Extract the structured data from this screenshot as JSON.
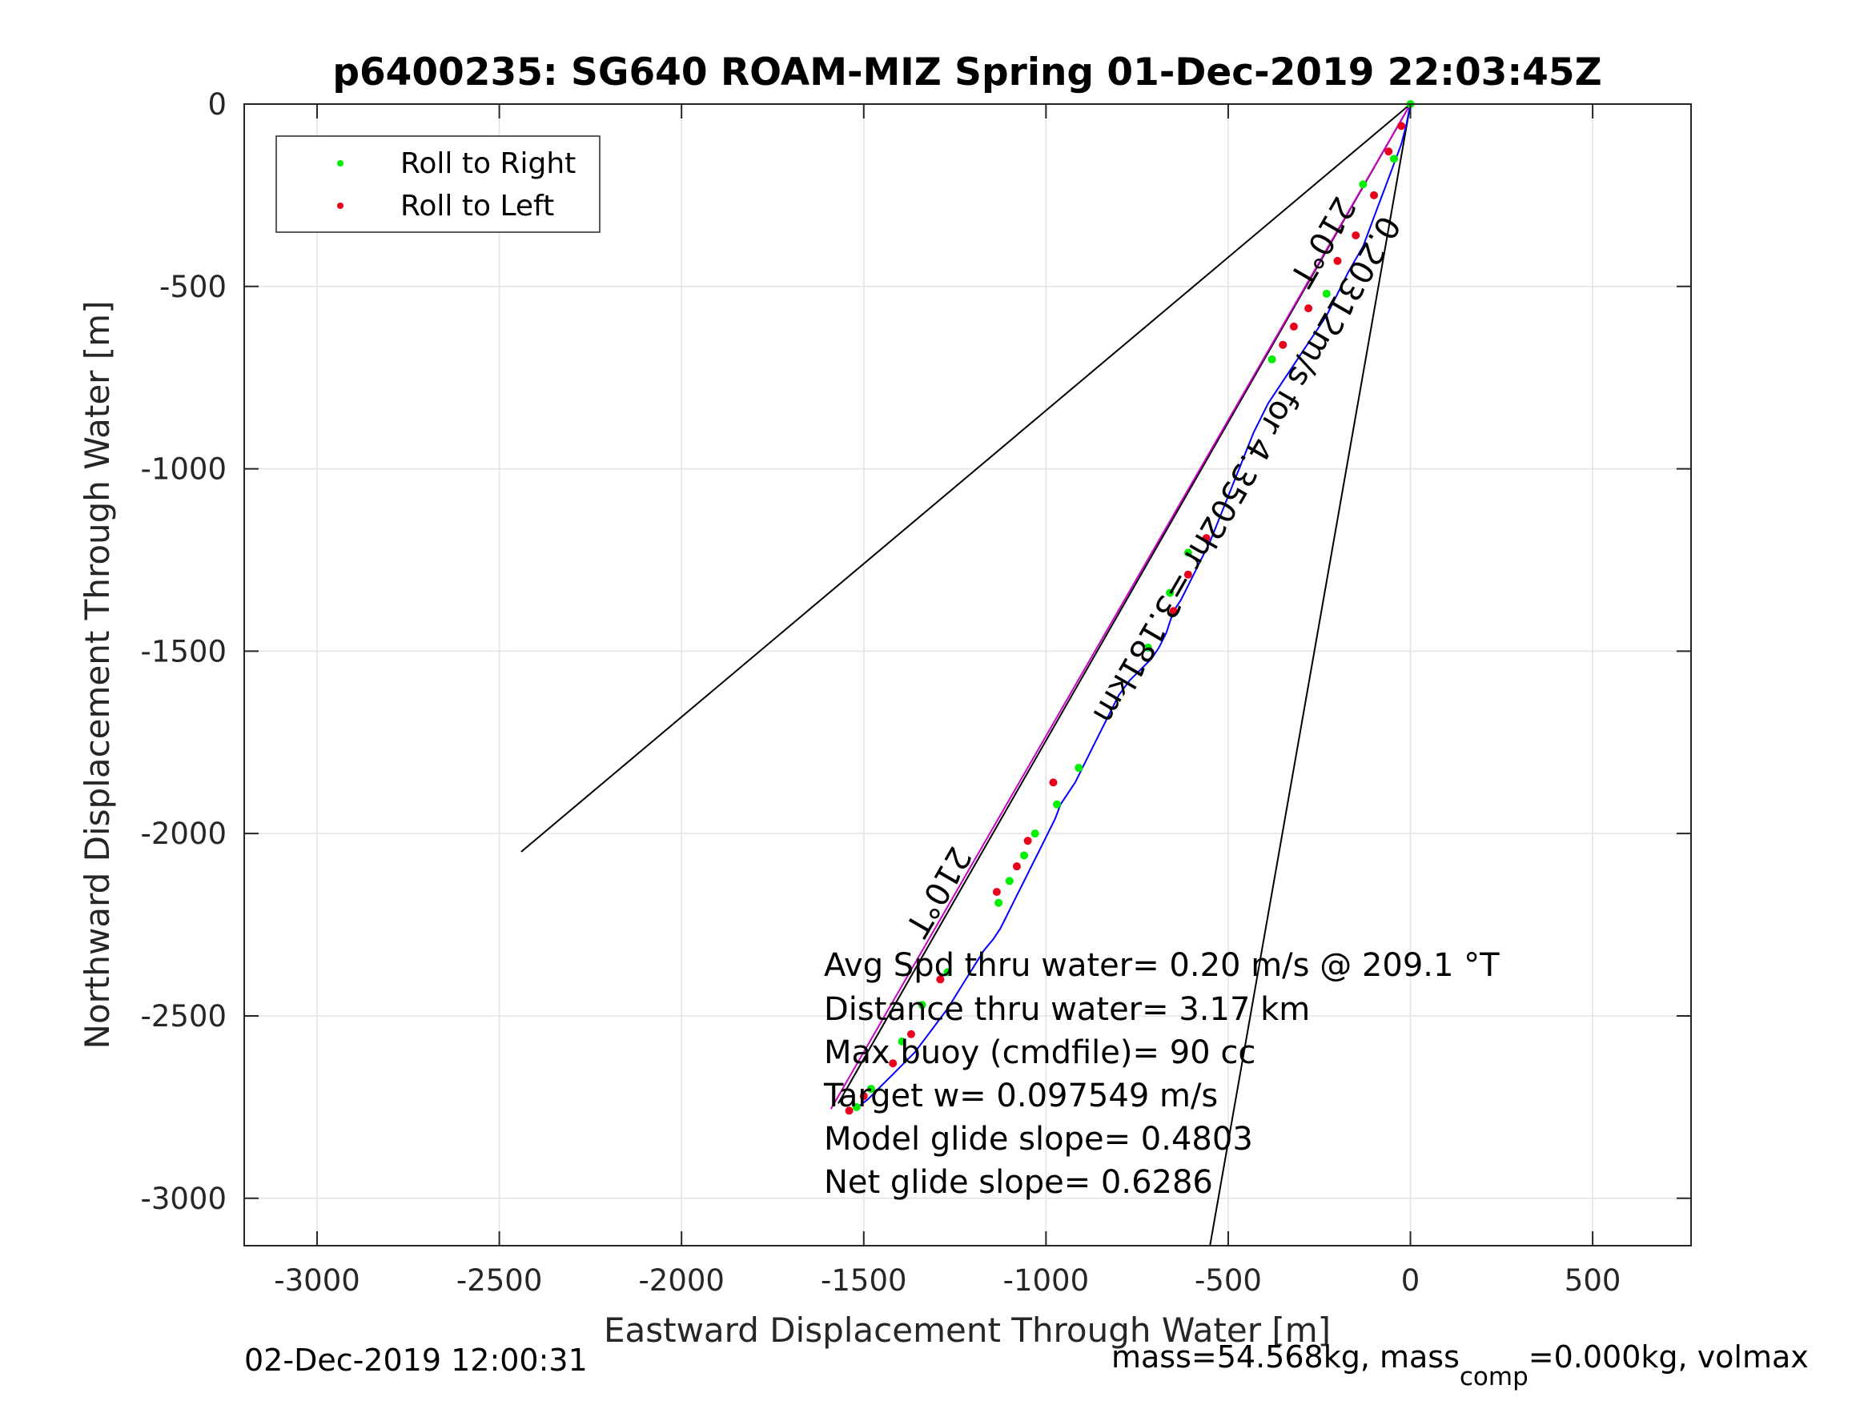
{
  "chart_data": {
    "type": "scatter",
    "title": "p6400235: SG640 ROAM-MIZ Spring 01-Dec-2019 22:03:45Z",
    "xlabel": "Eastward Displacement Through Water [m]",
    "ylabel": "Northward Displacement Through Water [m]",
    "xlim": [
      -3200,
      770
    ],
    "ylim": [
      -3130,
      0
    ],
    "xticks": [
      -3000,
      -2500,
      -2000,
      -1500,
      -1000,
      -500,
      0,
      500
    ],
    "yticks": [
      0,
      -500,
      -1000,
      -1500,
      -2000,
      -2500,
      -3000
    ],
    "grid": true,
    "legend": {
      "placement": "top-left",
      "entries": [
        "Roll to Right",
        "Roll to Left"
      ]
    },
    "colors": {
      "track": "#0000ff",
      "roll_right": "#00ee00",
      "roll_left": "#e8001c",
      "mean_course": "#cc00cc",
      "guide": "#000000"
    },
    "series": [
      {
        "name": "",
        "type": "line",
        "x": [
          0,
          -12,
          -25,
          -40,
          -55,
          -70,
          -85,
          -100,
          -115,
          -130,
          -150,
          -170,
          -190,
          -210,
          -230,
          -250,
          -270,
          -290,
          -310,
          -330,
          -350,
          -370,
          -390,
          -410,
          -430,
          -450,
          -470,
          -490,
          -510,
          -530,
          -550,
          -570,
          -590,
          -610,
          -630,
          -650,
          -660,
          -670,
          -690,
          -710,
          -740,
          -770,
          -800,
          -830,
          -850,
          -870,
          -890,
          -905,
          -920,
          -940,
          -960,
          -975,
          -990,
          -1005,
          -1020,
          -1035,
          -1050,
          -1065,
          -1080,
          -1095,
          -1110,
          -1125,
          -1145,
          -1170,
          -1195,
          -1220,
          -1245,
          -1270,
          -1300,
          -1330,
          -1360,
          -1390,
          -1420,
          -1450,
          -1470,
          -1490,
          -1510,
          -1525
        ],
        "y": [
          0,
          -60,
          -110,
          -150,
          -190,
          -230,
          -270,
          -310,
          -350,
          -390,
          -425,
          -460,
          -500,
          -540,
          -580,
          -610,
          -640,
          -670,
          -700,
          -730,
          -760,
          -790,
          -820,
          -860,
          -900,
          -950,
          -1000,
          -1050,
          -1100,
          -1150,
          -1200,
          -1240,
          -1280,
          -1320,
          -1360,
          -1390,
          -1420,
          -1450,
          -1490,
          -1520,
          -1550,
          -1580,
          -1620,
          -1680,
          -1720,
          -1760,
          -1800,
          -1830,
          -1860,
          -1890,
          -1920,
          -1960,
          -1990,
          -2020,
          -2050,
          -2080,
          -2110,
          -2140,
          -2170,
          -2200,
          -2230,
          -2260,
          -2290,
          -2320,
          -2360,
          -2400,
          -2440,
          -2480,
          -2520,
          -2560,
          -2600,
          -2630,
          -2660,
          -2690,
          -2710,
          -2730,
          -2745,
          -2755
        ]
      },
      {
        "name": "Roll to Right",
        "type": "scatter",
        "x": [
          0,
          -45,
          -130,
          -230,
          -380,
          -610,
          -660,
          -720,
          -910,
          -970,
          -1030,
          -1060,
          -1100,
          -1130,
          -1270,
          -1340,
          -1395,
          -1480,
          -1520
        ],
        "y": [
          0,
          -150,
          -220,
          -520,
          -700,
          -1230,
          -1340,
          -1490,
          -1820,
          -1920,
          -2000,
          -2060,
          -2130,
          -2190,
          -2380,
          -2470,
          -2570,
          -2700,
          -2750
        ]
      },
      {
        "name": "Roll to Left",
        "type": "scatter",
        "x": [
          -25,
          -60,
          -100,
          -150,
          -200,
          -280,
          -320,
          -350,
          -560,
          -610,
          -650,
          -980,
          -1050,
          -1080,
          -1135,
          -1290,
          -1370,
          -1420,
          -1500,
          -1540
        ],
        "y": [
          -60,
          -130,
          -250,
          -360,
          -430,
          -560,
          -610,
          -660,
          -1190,
          -1290,
          -1390,
          -1860,
          -2020,
          -2090,
          -2160,
          -2400,
          -2550,
          -2630,
          -2720,
          -2760
        ]
      }
    ],
    "annotations": {
      "angle_label_top": "210°T",
      "angle_label_bottom": "210°T",
      "course_label": "0.20312m/s for 4.3502hr =3.181km",
      "stats": [
        "Avg Spd thru water=  0.20 m/s @ 209.1 °T",
        "Distance thru water=  3.17 km",
        "Max buoy (cmdfile)= 90 cc",
        "Target w= 0.097549 m/s",
        "Model glide slope= 0.4803",
        "Net glide slope= 0.6286"
      ]
    },
    "footer_left": "02-Dec-2019 12:00:31",
    "footer_right_main": "mass=54.568kg, mass",
    "footer_right_sub": "comp",
    "footer_right_tail": "=0.000kg, volmax"
  }
}
